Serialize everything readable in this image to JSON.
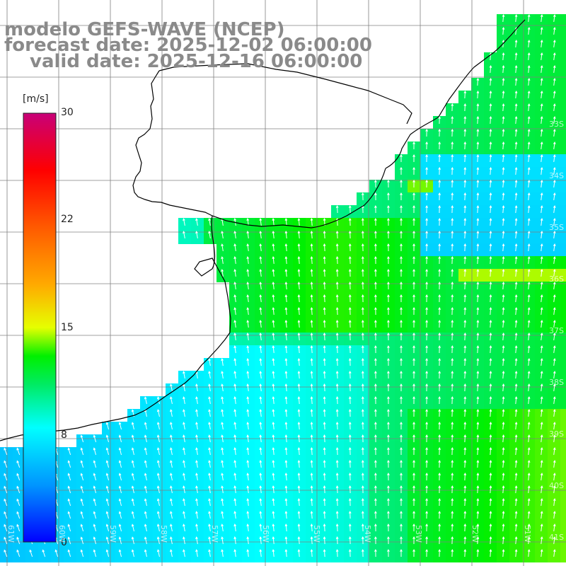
{
  "title": {
    "line1": "modelo GEFS-WAVE (NCEP)",
    "line2": "forecast date: 2025-12-02 06:00:00",
    "line3": "valid date: 2025-12-16 06:00:00"
  },
  "colorbar": {
    "unit": "[m/s]",
    "ticks": [
      "30",
      "22",
      "15",
      "8",
      "0"
    ],
    "tick_values": [
      30,
      22,
      15,
      8,
      0
    ],
    "min": 0,
    "max": 30
  },
  "map": {
    "lon_labels": [
      "61W",
      "60W",
      "59W",
      "58W",
      "57W",
      "56W",
      "55W",
      "54W",
      "53W",
      "52W",
      "51W"
    ],
    "lat_labels": [
      "33S",
      "34S",
      "35S",
      "36S",
      "37S",
      "38S",
      "39S",
      "40S",
      "41S"
    ],
    "field": "wind speed",
    "vector_color": "#ffffff",
    "coast_color": "#000000",
    "grid_color": "#808080"
  }
}
